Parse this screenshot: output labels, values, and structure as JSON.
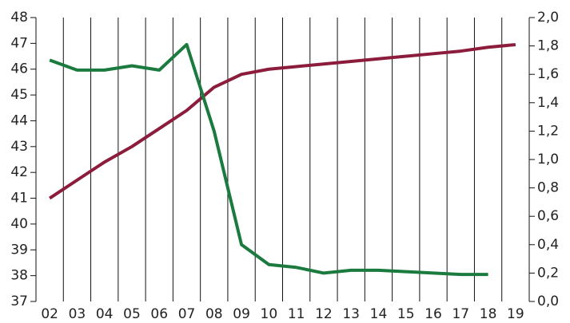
{
  "chart_data": {
    "type": "line",
    "categories": [
      "02",
      "03",
      "04",
      "05",
      "06",
      "07",
      "08",
      "09",
      "10",
      "11",
      "12",
      "13",
      "14",
      "15",
      "16",
      "17",
      "18",
      "19"
    ],
    "series": [
      {
        "color": "#8b1c3c",
        "values": [
          41.0,
          41.7,
          42.4,
          43.0,
          43.7,
          44.4,
          45.3,
          45.8,
          46.0,
          46.1,
          46.2,
          46.3,
          46.4,
          46.5,
          46.6,
          46.7,
          46.85,
          46.95
        ]
      },
      {
        "color": "#1b7a3e",
        "axis": "y2",
        "values": [
          1.7,
          1.63,
          1.63,
          1.66,
          1.63,
          1.81,
          1.2,
          0.4,
          0.26,
          0.24,
          0.2,
          0.22,
          0.22,
          0.21,
          0.2,
          0.19,
          0.19,
          null
        ]
      }
    ],
    "ylim": [
      37,
      48
    ],
    "yticks": [
      37,
      38,
      39,
      40,
      41,
      42,
      43,
      44,
      45,
      46,
      47,
      48
    ],
    "y2lim": [
      0,
      2
    ],
    "y2ticks": [
      {
        "value": 0,
        "label": "0,0"
      },
      {
        "value": 0.2,
        "label": "0,2"
      },
      {
        "value": 0.4,
        "label": "0,4"
      },
      {
        "value": 0.6,
        "label": "0,6"
      },
      {
        "value": 0.8,
        "label": "0,8"
      },
      {
        "value": 1.0,
        "label": "1,0"
      },
      {
        "value": 1.2,
        "label": "1,2"
      },
      {
        "value": 1.4,
        "label": "1,4"
      },
      {
        "value": 1.6,
        "label": "1,6"
      },
      {
        "value": 1.8,
        "label": "1,8"
      },
      {
        "value": 2.0,
        "label": "2,0"
      }
    ]
  }
}
